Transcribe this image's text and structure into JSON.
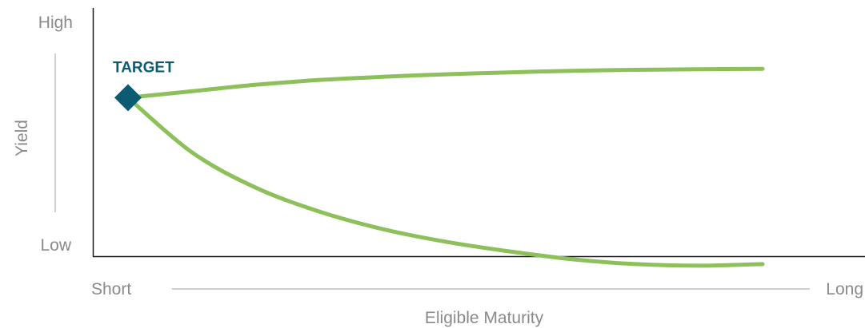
{
  "chart_data": {
    "type": "line",
    "title": "",
    "xlabel": "Eligible Maturity",
    "ylabel": "Yield",
    "x_tick_labels": {
      "start": "Short",
      "end": "Long"
    },
    "y_tick_labels": {
      "top": "High",
      "bottom": "Low"
    },
    "xlim": [
      0,
      1
    ],
    "ylim": [
      0,
      1
    ],
    "grid": false,
    "annotations": [
      {
        "name": "target",
        "label": "TARGET",
        "x": 0.0,
        "y": 0.62,
        "marker": "diamond",
        "color": "#0b5c73"
      }
    ],
    "series": [
      {
        "color": "#8dbf5a",
        "x": [
          0.0,
          0.1,
          0.2,
          0.3,
          0.4,
          0.5,
          0.6,
          0.7,
          0.8,
          0.9,
          1.0
        ],
        "y": [
          0.62,
          0.64,
          0.66,
          0.675,
          0.685,
          0.693,
          0.699,
          0.704,
          0.707,
          0.709,
          0.71
        ]
      },
      {
        "color": "#8dbf5a",
        "x": [
          0.0,
          0.1,
          0.2,
          0.3,
          0.4,
          0.5,
          0.6,
          0.7,
          0.8,
          0.9,
          1.0
        ],
        "y": [
          0.62,
          0.45,
          0.34,
          0.265,
          0.21,
          0.17,
          0.14,
          0.115,
          0.1,
          0.095,
          0.1
        ]
      }
    ]
  }
}
